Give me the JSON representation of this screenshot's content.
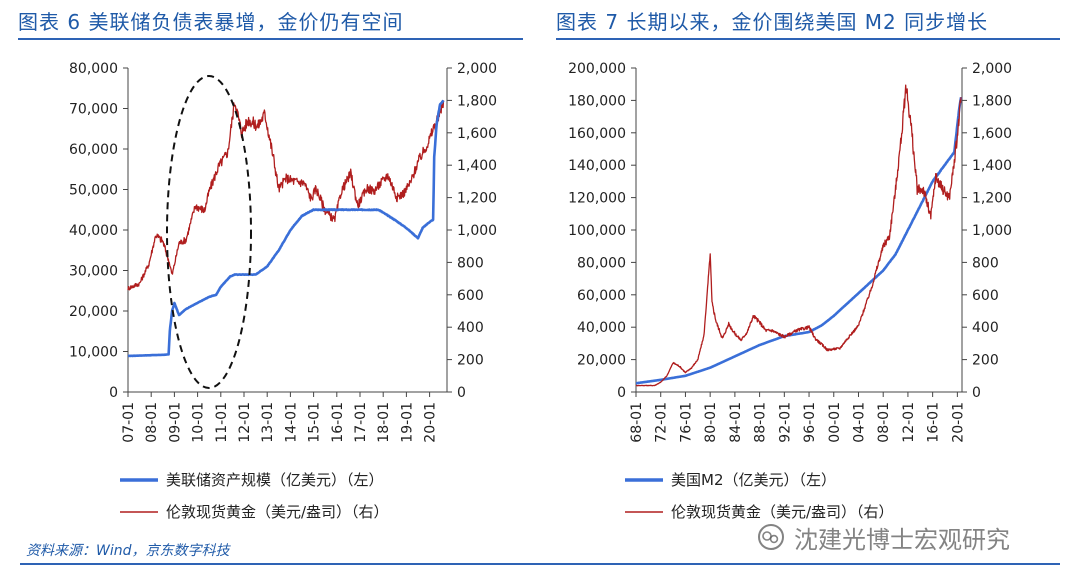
{
  "left_title": "图表 6 美联储负债表暴增，金价仍有空间",
  "right_title": "图表 7 长期以来，金价围绕美国 M2 同步增长",
  "source": "资料来源：Wind，京东数字科技",
  "watermark": "沈建光博士宏观研究",
  "colors": {
    "blue": "#3a6fd8",
    "red": "#b01e1e",
    "title": "#1f5aa8"
  },
  "chart_data": [
    {
      "type": "line",
      "title": "图表 6 美联储负债表暴增，金价仍有空间",
      "x_tick_labels": [
        "07-01",
        "08-01",
        "09-01",
        "10-01",
        "11-01",
        "12-01",
        "13-01",
        "14-01",
        "15-01",
        "16-01",
        "17-01",
        "18-01",
        "19-01",
        "20-01"
      ],
      "y_left": {
        "ylim": [
          0,
          80000
        ],
        "ticks": [
          "0",
          "10,000",
          "20,000",
          "30,000",
          "40,000",
          "50,000",
          "60,000",
          "70,000",
          "80,000"
        ]
      },
      "y_right": {
        "ylim": [
          0,
          2000
        ],
        "ticks": [
          "0",
          "200",
          "400",
          "600",
          "800",
          "1,000",
          "1,200",
          "1,400",
          "1,600",
          "1,800",
          "2,000"
        ]
      },
      "annotation": "dashed ellipse highlighting 2008–2011",
      "series": [
        {
          "name": "美联储资产规模（亿美元）（左）",
          "axis": "left",
          "color": "#3a6fd8",
          "points": [
            [
              2007.0,
              8900
            ],
            [
              2008.6,
              9200
            ],
            [
              2008.75,
              9300
            ],
            [
              2008.8,
              15000
            ],
            [
              2008.9,
              20000
            ],
            [
              2009.0,
              22000
            ],
            [
              2009.2,
              19000
            ],
            [
              2009.5,
              20500
            ],
            [
              2010.0,
              22000
            ],
            [
              2010.5,
              23500
            ],
            [
              2010.8,
              24000
            ],
            [
              2011.0,
              26000
            ],
            [
              2011.4,
              28500
            ],
            [
              2011.6,
              29000
            ],
            [
              2012.0,
              29000
            ],
            [
              2012.5,
              29000
            ],
            [
              2013.0,
              31000
            ],
            [
              2013.5,
              35000
            ],
            [
              2014.0,
              40000
            ],
            [
              2014.5,
              43500
            ],
            [
              2015.0,
              45000
            ],
            [
              2016.0,
              45000
            ],
            [
              2017.0,
              45000
            ],
            [
              2017.8,
              45000
            ],
            [
              2018.5,
              42500
            ],
            [
              2019.0,
              40500
            ],
            [
              2019.5,
              38000
            ],
            [
              2019.7,
              40500
            ],
            [
              2020.0,
              42000
            ],
            [
              2020.15,
              42500
            ],
            [
              2020.2,
              58000
            ],
            [
              2020.3,
              66000
            ],
            [
              2020.45,
              71000
            ],
            [
              2020.6,
              72000
            ]
          ]
        },
        {
          "name": "伦敦现货黄金（美元/盎司）（右）",
          "axis": "right",
          "color": "#b01e1e",
          "points": [
            [
              2007.0,
              640
            ],
            [
              2007.5,
              670
            ],
            [
              2007.9,
              790
            ],
            [
              2008.2,
              970
            ],
            [
              2008.5,
              930
            ],
            [
              2008.8,
              790
            ],
            [
              2008.9,
              720
            ],
            [
              2009.2,
              920
            ],
            [
              2009.5,
              940
            ],
            [
              2009.9,
              1150
            ],
            [
              2010.3,
              1120
            ],
            [
              2010.5,
              1240
            ],
            [
              2010.9,
              1390
            ],
            [
              2011.3,
              1480
            ],
            [
              2011.6,
              1800
            ],
            [
              2011.9,
              1600
            ],
            [
              2012.2,
              1680
            ],
            [
              2012.6,
              1640
            ],
            [
              2012.9,
              1720
            ],
            [
              2013.3,
              1420
            ],
            [
              2013.5,
              1250
            ],
            [
              2013.8,
              1320
            ],
            [
              2014.2,
              1300
            ],
            [
              2014.6,
              1290
            ],
            [
              2014.9,
              1190
            ],
            [
              2015.1,
              1260
            ],
            [
              2015.5,
              1120
            ],
            [
              2015.9,
              1060
            ],
            [
              2016.2,
              1240
            ],
            [
              2016.6,
              1350
            ],
            [
              2016.9,
              1150
            ],
            [
              2017.3,
              1260
            ],
            [
              2017.6,
              1240
            ],
            [
              2017.9,
              1290
            ],
            [
              2018.2,
              1340
            ],
            [
              2018.6,
              1200
            ],
            [
              2018.9,
              1230
            ],
            [
              2019.2,
              1300
            ],
            [
              2019.5,
              1420
            ],
            [
              2019.8,
              1500
            ],
            [
              2020.0,
              1560
            ],
            [
              2020.2,
              1640
            ],
            [
              2020.4,
              1700
            ],
            [
              2020.6,
              1800
            ]
          ]
        }
      ],
      "legend": [
        "美联储资产规模（亿美元）（左）",
        "伦敦现货黄金（美元/盎司）（右）"
      ]
    },
    {
      "type": "line",
      "title": "图表 7 长期以来，金价围绕美国 M2 同步增长",
      "x_tick_labels": [
        "68-01",
        "72-01",
        "76-01",
        "80-01",
        "84-01",
        "88-01",
        "92-01",
        "96-01",
        "00-01",
        "04-01",
        "08-01",
        "12-01",
        "16-01",
        "20-01"
      ],
      "y_left": {
        "ylim": [
          0,
          200000
        ],
        "ticks": [
          "0",
          "20,000",
          "40,000",
          "60,000",
          "80,000",
          "100,000",
          "120,000",
          "140,000",
          "160,000",
          "180,000",
          "200,000"
        ]
      },
      "y_right": {
        "ylim": [
          0,
          2000
        ],
        "ticks": [
          "0",
          "200",
          "400",
          "600",
          "800",
          "1,000",
          "1,200",
          "1,400",
          "1,600",
          "1,800",
          "2,000"
        ]
      },
      "series": [
        {
          "name": "美国M2（亿美元）（左）",
          "axis": "left",
          "color": "#3a6fd8",
          "points": [
            [
              1968,
              5400
            ],
            [
              1972,
              7500
            ],
            [
              1976,
              10000
            ],
            [
              1980,
              15000
            ],
            [
              1984,
              22000
            ],
            [
              1988,
              29000
            ],
            [
              1992,
              34500
            ],
            [
              1996,
              37000
            ],
            [
              1998,
              41000
            ],
            [
              2000,
              47000
            ],
            [
              2004,
              61000
            ],
            [
              2008,
              75000
            ],
            [
              2010,
              85000
            ],
            [
              2012,
              100000
            ],
            [
              2016,
              130000
            ],
            [
              2019.5,
              148000
            ],
            [
              2020.3,
              175000
            ],
            [
              2020.6,
              182000
            ]
          ]
        },
        {
          "name": "伦敦现货黄金（美元/盎司）（右）",
          "axis": "right",
          "color": "#b01e1e",
          "points": [
            [
              1968,
              40
            ],
            [
              1971,
              40
            ],
            [
              1972,
              60
            ],
            [
              1973,
              100
            ],
            [
              1974,
              180
            ],
            [
              1975,
              160
            ],
            [
              1976,
              120
            ],
            [
              1977,
              150
            ],
            [
              1978,
              200
            ],
            [
              1979,
              350
            ],
            [
              1980,
              850
            ],
            [
              1980.3,
              550
            ],
            [
              1981,
              430
            ],
            [
              1982,
              330
            ],
            [
              1983,
              420
            ],
            [
              1984,
              360
            ],
            [
              1985,
              320
            ],
            [
              1986,
              370
            ],
            [
              1987,
              470
            ],
            [
              1988,
              430
            ],
            [
              1989,
              380
            ],
            [
              1990,
              380
            ],
            [
              1992,
              340
            ],
            [
              1994,
              380
            ],
            [
              1996,
              400
            ],
            [
              1997,
              330
            ],
            [
              1999,
              260
            ],
            [
              2001,
              270
            ],
            [
              2002,
              320
            ],
            [
              2004,
              410
            ],
            [
              2006,
              630
            ],
            [
              2008,
              900
            ],
            [
              2009,
              960
            ],
            [
              2010,
              1250
            ],
            [
              2011,
              1600
            ],
            [
              2011.7,
              1890
            ],
            [
              2012.5,
              1650
            ],
            [
              2013.5,
              1250
            ],
            [
              2014.5,
              1250
            ],
            [
              2015.7,
              1080
            ],
            [
              2016.5,
              1330
            ],
            [
              2017.5,
              1260
            ],
            [
              2018.7,
              1200
            ],
            [
              2019.5,
              1420
            ],
            [
              2020.0,
              1580
            ],
            [
              2020.6,
              1820
            ]
          ]
        }
      ],
      "legend": [
        "美国M2（亿美元）（左）",
        "伦敦现货黄金（美元/盎司）（右）"
      ]
    }
  ]
}
